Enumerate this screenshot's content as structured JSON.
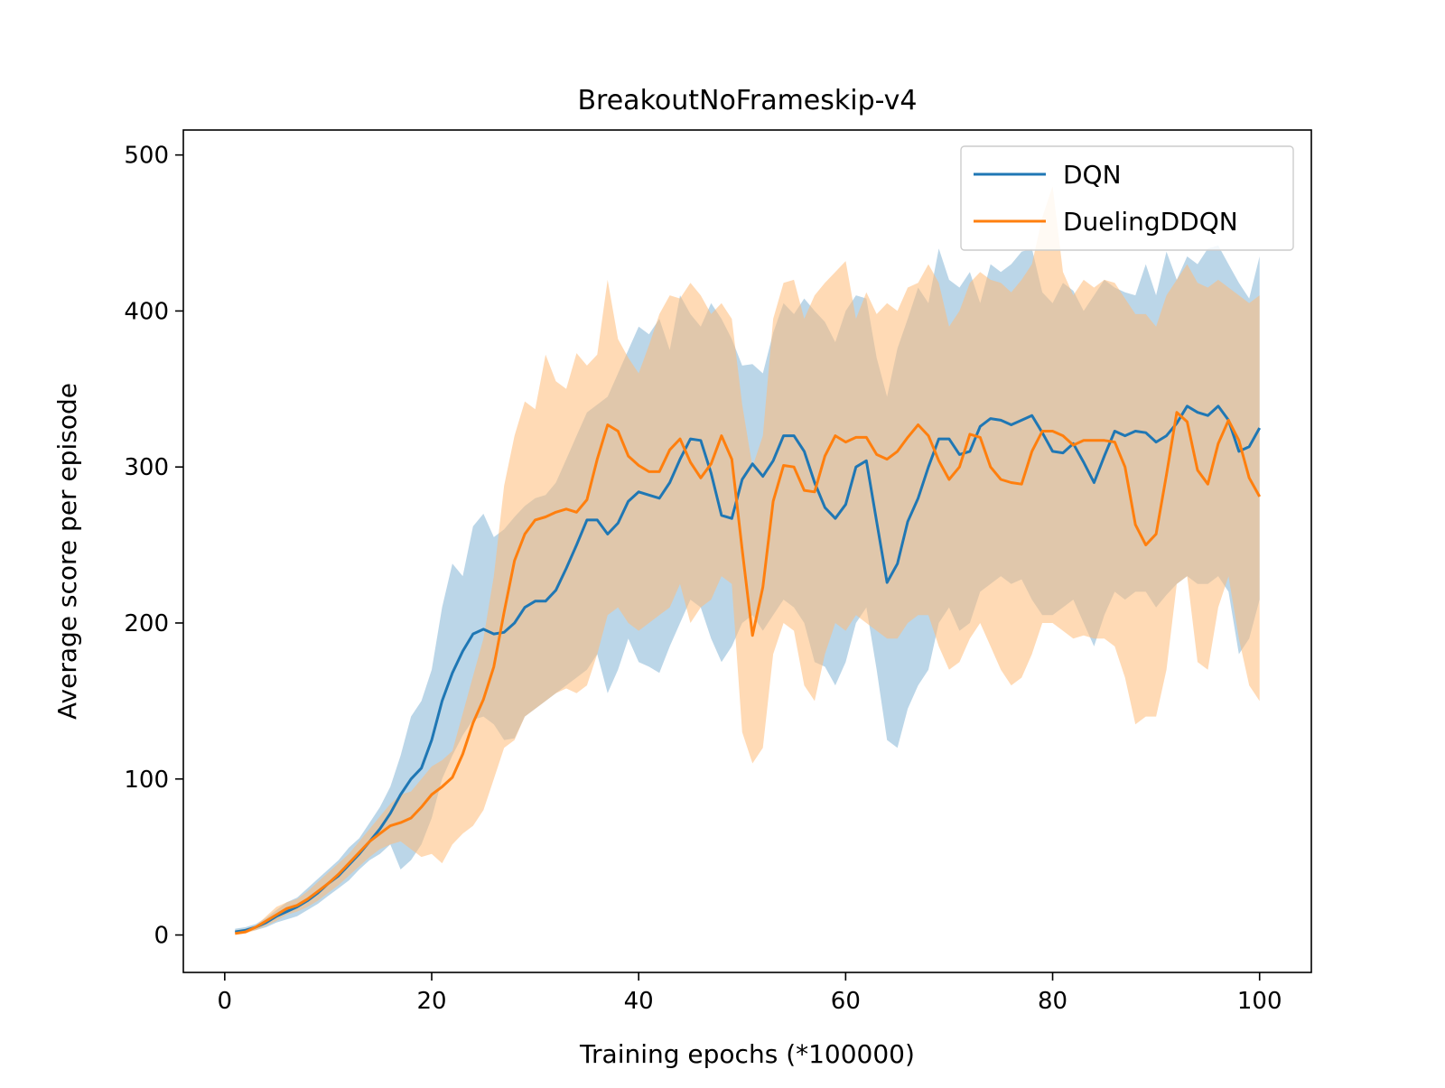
{
  "chart_data": {
    "type": "line",
    "title": "BreakoutNoFrameskip-v4",
    "xlabel": "Training epochs (*100000)",
    "ylabel": "Average score per episode",
    "xlim": [
      -4,
      105
    ],
    "ylim": [
      -24,
      516
    ],
    "xticks": [
      0,
      20,
      40,
      60,
      80,
      100
    ],
    "yticks": [
      0,
      100,
      200,
      300,
      400,
      500
    ],
    "grid": false,
    "legend_position": "top-right",
    "x": [
      1,
      2,
      3,
      4,
      5,
      6,
      7,
      8,
      9,
      10,
      11,
      12,
      13,
      14,
      15,
      16,
      17,
      18,
      19,
      20,
      21,
      22,
      23,
      24,
      25,
      26,
      27,
      28,
      29,
      30,
      31,
      32,
      33,
      34,
      35,
      36,
      37,
      38,
      39,
      40,
      41,
      42,
      43,
      44,
      45,
      46,
      47,
      48,
      49,
      50,
      51,
      52,
      53,
      54,
      55,
      56,
      57,
      58,
      59,
      60,
      61,
      62,
      63,
      64,
      65,
      66,
      67,
      68,
      69,
      70,
      71,
      72,
      73,
      74,
      75,
      76,
      77,
      78,
      79,
      80,
      81,
      82,
      83,
      84,
      85,
      86,
      87,
      88,
      89,
      90,
      91,
      92,
      93,
      94,
      95,
      96,
      97,
      98,
      99,
      100
    ],
    "series": [
      {
        "name": "DQN",
        "color": "#1f77b4",
        "band_color": "#1f77b4",
        "values": [
          2,
          3,
          5,
          8,
          12,
          15,
          18,
          22,
          27,
          33,
          38,
          45,
          52,
          60,
          68,
          78,
          90,
          100,
          107,
          125,
          150,
          168,
          182,
          193,
          196,
          193,
          194,
          200,
          210,
          214,
          214,
          221,
          235,
          250,
          266,
          266,
          257,
          264,
          278,
          284,
          282,
          280,
          290,
          305,
          318,
          317,
          296,
          269,
          267,
          292,
          302,
          294,
          304,
          320,
          320,
          310,
          290,
          274,
          267,
          276,
          300,
          304,
          265,
          226,
          238,
          265,
          280,
          300,
          318,
          318,
          308,
          310,
          326,
          331,
          330,
          327,
          330,
          333,
          322,
          310,
          309,
          315,
          303,
          290,
          307,
          323,
          320,
          323,
          322,
          316,
          320,
          328,
          339,
          335,
          333,
          339,
          330,
          310,
          313,
          325
        ],
        "upper": [
          4,
          5,
          7,
          11,
          16,
          21,
          24,
          30,
          36,
          42,
          48,
          56,
          62,
          72,
          82,
          95,
          115,
          140,
          150,
          170,
          210,
          238,
          230,
          262,
          270,
          255,
          260,
          268,
          275,
          280,
          282,
          290,
          305,
          320,
          335,
          340,
          345,
          360,
          375,
          390,
          385,
          395,
          375,
          410,
          398,
          390,
          405,
          395,
          382,
          365,
          366,
          360,
          386,
          405,
          398,
          408,
          400,
          393,
          380,
          400,
          410,
          408,
          370,
          345,
          376,
          395,
          415,
          405,
          440,
          420,
          415,
          425,
          405,
          430,
          425,
          430,
          438,
          440,
          412,
          405,
          418,
          413,
          400,
          410,
          420,
          415,
          412,
          410,
          430,
          410,
          438,
          420,
          435,
          430,
          440,
          442,
          430,
          418,
          408,
          435
        ],
        "lower": [
          1,
          2,
          3,
          5,
          8,
          10,
          12,
          16,
          20,
          25,
          30,
          35,
          42,
          48,
          52,
          58,
          42,
          48,
          58,
          75,
          100,
          115,
          128,
          138,
          140,
          135,
          125,
          126,
          140,
          145,
          150,
          155,
          160,
          165,
          170,
          180,
          155,
          170,
          190,
          175,
          172,
          168,
          185,
          200,
          215,
          210,
          190,
          175,
          185,
          200,
          205,
          195,
          205,
          215,
          210,
          200,
          175,
          172,
          160,
          175,
          200,
          210,
          170,
          125,
          120,
          145,
          160,
          170,
          200,
          210,
          195,
          200,
          220,
          225,
          230,
          225,
          228,
          215,
          205,
          205,
          210,
          215,
          200,
          185,
          205,
          220,
          215,
          220,
          220,
          210,
          218,
          225,
          230,
          225,
          225,
          230,
          220,
          180,
          190,
          215
        ]
      },
      {
        "name": "DuelingDDQN",
        "color": "#ff7f0e",
        "band_color": "#ffbb78",
        "values": [
          1,
          2,
          5,
          9,
          13,
          17,
          19,
          23,
          28,
          33,
          39,
          46,
          53,
          60,
          65,
          70,
          72,
          75,
          82,
          90,
          95,
          101,
          116,
          136,
          151,
          172,
          207,
          240,
          257,
          266,
          268,
          271,
          273,
          271,
          279,
          305,
          327,
          323,
          307,
          301,
          297,
          297,
          311,
          318,
          303,
          293,
          302,
          320,
          305,
          247,
          192,
          223,
          278,
          301,
          300,
          285,
          284,
          307,
          320,
          316,
          319,
          319,
          308,
          305,
          310,
          319,
          327,
          320,
          304,
          292,
          300,
          321,
          319,
          300,
          292,
          290,
          289,
          310,
          323,
          323,
          320,
          314,
          317,
          317,
          317,
          316,
          300,
          263,
          250,
          257,
          295,
          335,
          329,
          298,
          289,
          315,
          330,
          317,
          293,
          281
        ],
        "upper": [
          3,
          4,
          6,
          12,
          18,
          21,
          23,
          28,
          34,
          40,
          46,
          52,
          60,
          68,
          76,
          84,
          90,
          92,
          100,
          108,
          112,
          118,
          142,
          166,
          190,
          230,
          288,
          320,
          342,
          337,
          372,
          355,
          350,
          373,
          365,
          372,
          420,
          382,
          370,
          360,
          378,
          398,
          410,
          408,
          418,
          410,
          398,
          405,
          395,
          340,
          300,
          320,
          395,
          418,
          420,
          395,
          410,
          418,
          425,
          432,
          395,
          412,
          398,
          405,
          400,
          415,
          418,
          430,
          418,
          390,
          400,
          418,
          425,
          420,
          418,
          412,
          420,
          430,
          460,
          480,
          425,
          410,
          420,
          415,
          420,
          418,
          408,
          398,
          398,
          390,
          410,
          420,
          430,
          418,
          415,
          420,
          415,
          410,
          405,
          410
        ],
        "lower": [
          0,
          1,
          3,
          6,
          9,
          13,
          15,
          18,
          22,
          27,
          32,
          38,
          44,
          50,
          55,
          58,
          60,
          55,
          50,
          52,
          46,
          58,
          65,
          70,
          80,
          100,
          120,
          125,
          140,
          145,
          150,
          155,
          158,
          155,
          160,
          180,
          205,
          210,
          200,
          195,
          200,
          205,
          210,
          225,
          200,
          210,
          215,
          230,
          225,
          130,
          110,
          120,
          180,
          200,
          195,
          160,
          150,
          180,
          200,
          195,
          205,
          200,
          195,
          190,
          190,
          200,
          205,
          205,
          185,
          170,
          175,
          190,
          200,
          185,
          170,
          160,
          165,
          180,
          200,
          200,
          195,
          190,
          192,
          190,
          190,
          185,
          165,
          135,
          140,
          140,
          170,
          225,
          230,
          175,
          170,
          210,
          230,
          190,
          160,
          150
        ]
      }
    ]
  }
}
